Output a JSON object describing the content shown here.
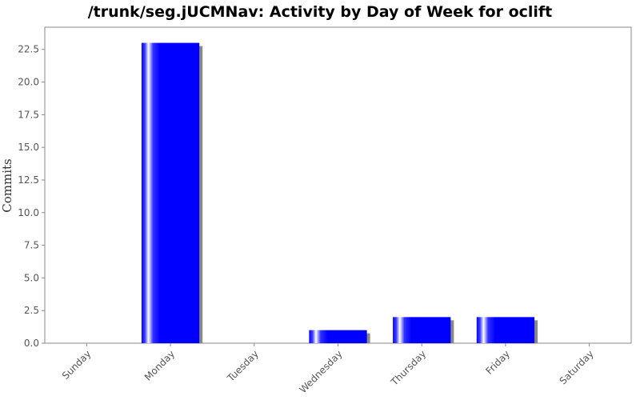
{
  "chart_data": {
    "type": "bar",
    "title": "/trunk/seg.jUCMNav: Activity by Day of Week for oclift",
    "xlabel": "",
    "ylabel": "Commits",
    "categories": [
      "Sunday",
      "Monday",
      "Tuesday",
      "Wednesday",
      "Thursday",
      "Friday",
      "Saturday"
    ],
    "values": [
      0,
      23,
      0,
      1,
      2,
      2,
      0
    ],
    "ylim": [
      0,
      24.2
    ],
    "yticks": [
      "0.0",
      "2.5",
      "5.0",
      "7.5",
      "10.0",
      "12.5",
      "15.0",
      "17.5",
      "20.0",
      "22.5"
    ],
    "bar_color": "#0000ff",
    "shadow_color": "#888888",
    "grid": false,
    "legend": "none"
  }
}
